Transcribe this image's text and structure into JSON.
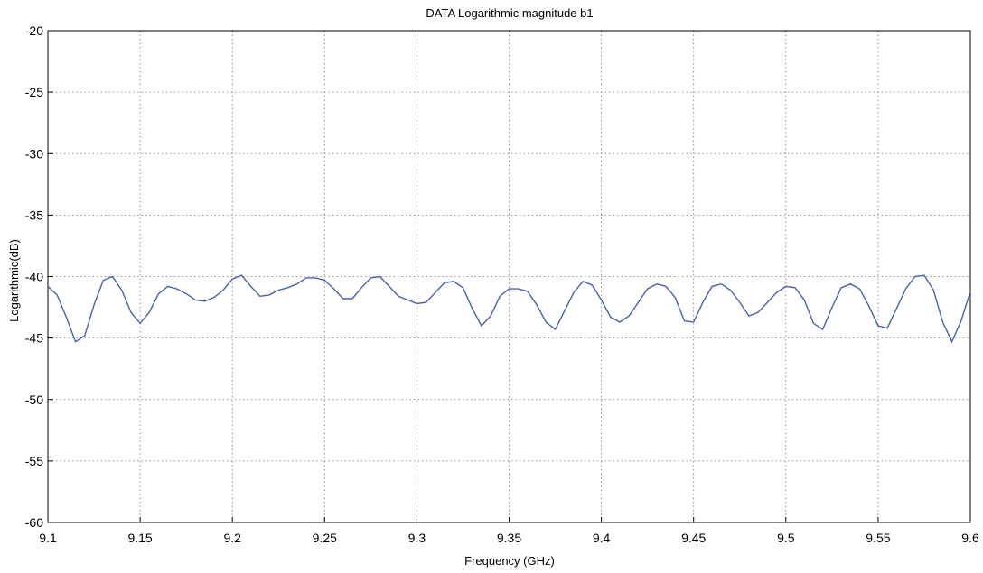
{
  "chart_data": {
    "type": "line",
    "title": "DATA Logarithmic magnitude b1",
    "xlabel": "Frequency (GHz)",
    "ylabel": "Logarithmic(dB)",
    "xlim": [
      9.1,
      9.6
    ],
    "ylim": [
      -60,
      -20
    ],
    "x_ticks": [
      "9.1",
      "9.15",
      "9.2",
      "9.25",
      "9.3",
      "9.35",
      "9.4",
      "9.45",
      "9.5",
      "9.55",
      "9.6"
    ],
    "y_ticks": [
      "-20",
      "-25",
      "-30",
      "-35",
      "-40",
      "-45",
      "-50",
      "-55",
      "-60"
    ],
    "grid": true,
    "series_color": "#4b5fae",
    "series": [
      {
        "x": [
          9.1,
          9.105,
          9.11,
          9.115,
          9.12,
          9.125,
          9.13,
          9.135,
          9.14,
          9.145,
          9.15,
          9.155,
          9.16,
          9.165,
          9.17,
          9.175,
          9.18,
          9.185,
          9.19,
          9.195,
          9.2,
          9.205,
          9.21,
          9.215,
          9.22,
          9.225,
          9.23,
          9.235,
          9.24,
          9.245,
          9.25,
          9.255,
          9.26,
          9.265,
          9.27,
          9.275,
          9.28,
          9.285,
          9.29,
          9.295,
          9.3,
          9.305,
          9.31,
          9.315,
          9.32,
          9.325,
          9.33,
          9.335,
          9.34,
          9.345,
          9.35,
          9.355,
          9.36,
          9.365,
          9.37,
          9.375,
          9.38,
          9.385,
          9.39,
          9.395,
          9.4,
          9.405,
          9.41,
          9.415,
          9.42,
          9.425,
          9.43,
          9.435,
          9.44,
          9.445,
          9.45,
          9.455,
          9.46,
          9.465,
          9.47,
          9.475,
          9.48,
          9.485,
          9.49,
          9.495,
          9.5,
          9.505,
          9.51,
          9.515,
          9.52,
          9.525,
          9.53,
          9.535,
          9.54,
          9.545,
          9.55,
          9.555,
          9.56,
          9.565,
          9.57,
          9.575,
          9.58,
          9.585,
          9.59,
          9.595,
          9.6
        ],
        "values": [
          -40.8,
          -41.5,
          -43.3,
          -45.3,
          -44.8,
          -42.3,
          -40.3,
          -40.0,
          -41.1,
          -42.9,
          -43.8,
          -42.9,
          -41.4,
          -40.8,
          -41.0,
          -41.4,
          -41.9,
          -42.0,
          -41.7,
          -41.1,
          -40.2,
          -39.9,
          -40.8,
          -41.6,
          -41.5,
          -41.1,
          -40.9,
          -40.6,
          -40.1,
          -40.1,
          -40.3,
          -41.0,
          -41.8,
          -41.8,
          -40.9,
          -40.1,
          -40.0,
          -40.8,
          -41.6,
          -41.9,
          -42.2,
          -42.1,
          -41.3,
          -40.5,
          -40.4,
          -40.9,
          -42.6,
          -44.0,
          -43.2,
          -41.6,
          -41.0,
          -41.0,
          -41.2,
          -42.3,
          -43.7,
          -44.3,
          -42.8,
          -41.3,
          -40.4,
          -40.7,
          -41.9,
          -43.3,
          -43.7,
          -43.2,
          -42.1,
          -41.0,
          -40.6,
          -40.8,
          -41.7,
          -43.6,
          -43.7,
          -42.1,
          -40.8,
          -40.6,
          -41.1,
          -42.1,
          -43.2,
          -42.9,
          -42.1,
          -41.3,
          -40.8,
          -40.9,
          -41.9,
          -43.8,
          -44.3,
          -42.5,
          -40.9,
          -40.6,
          -41.0,
          -42.4,
          -44.0,
          -44.2,
          -42.6,
          -41.0,
          -40.0,
          -39.9,
          -41.1,
          -43.7,
          -45.3,
          -43.6,
          -41.2
        ]
      }
    ]
  }
}
